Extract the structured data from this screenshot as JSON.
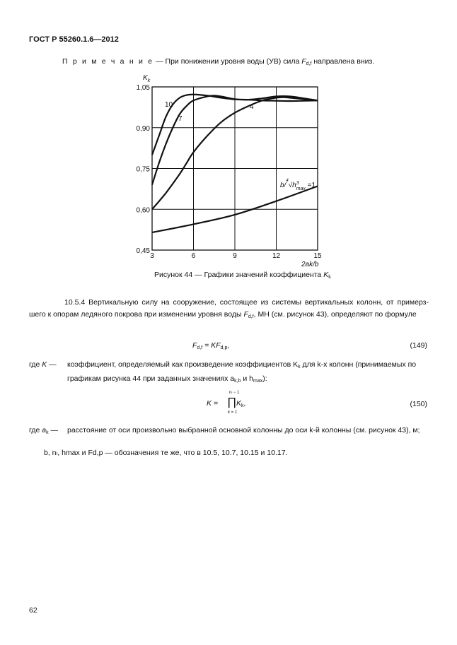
{
  "header": {
    "title": "ГОСТ Р 55260.1.6—2012"
  },
  "note": {
    "label": "П р и м е ч а н и е",
    "text_pre": " — При понижении уровня воды (УВ) сила ",
    "sym": "F",
    "sub": "d,f",
    "text_post": " направлена вниз."
  },
  "figure": {
    "caption": "Рисунок 44 — Графики значений коэффициента ",
    "caption_sym": "K",
    "caption_sub": "k"
  },
  "chart_data": {
    "type": "line",
    "ylabel": "Kk",
    "xlabel": "2ak/b",
    "xlim": [
      3,
      15
    ],
    "ylim": [
      0.45,
      1.05
    ],
    "xticks": [
      "3",
      "6",
      "9",
      "12",
      "15"
    ],
    "yticks": [
      "0,45",
      "0,60",
      "0,75",
      "0,90",
      "1,05"
    ],
    "grid": true,
    "series": [
      {
        "name": "10",
        "x": [
          3,
          3.5,
          4,
          4.5,
          5,
          5.5,
          6,
          7,
          8,
          9,
          10,
          11,
          12,
          13,
          14,
          15
        ],
        "y": [
          0.8,
          0.87,
          0.94,
          0.985,
          1.01,
          1.02,
          1.022,
          1.018,
          1.01,
          1.004,
          1.003,
          1.0,
          0.999,
          0.998,
          0.999,
          1.0
        ]
      },
      {
        "name": "7",
        "x": [
          3,
          3.5,
          4,
          4.5,
          5,
          5.5,
          6,
          7,
          7.5,
          8,
          9,
          10,
          11,
          12,
          13,
          14,
          15
        ],
        "y": [
          0.69,
          0.77,
          0.84,
          0.9,
          0.95,
          0.98,
          1.0,
          1.015,
          1.018,
          1.015,
          1.005,
          1.003,
          1.008,
          1.015,
          1.015,
          1.008,
          1.0
        ]
      },
      {
        "name": "4",
        "x": [
          3,
          4,
          5,
          5.5,
          6,
          7,
          8,
          9,
          10,
          11,
          12,
          12.5,
          13,
          14,
          15
        ],
        "y": [
          0.6,
          0.66,
          0.73,
          0.77,
          0.81,
          0.87,
          0.92,
          0.955,
          0.98,
          1.0,
          1.01,
          1.012,
          1.01,
          1.005,
          1.0
        ]
      },
      {
        "name": "b/∜h³max =1",
        "x": [
          3,
          6,
          9,
          12,
          15
        ],
        "y": [
          0.515,
          0.545,
          0.58,
          0.63,
          0.685
        ]
      }
    ]
  },
  "section": {
    "para": "10.5.4 Вертикальную силу на сооружение, состоящее из системы вертикальных колонн, от примерз-шего к опорам ледяного покрова при изменении уровня воды ",
    "para_sym": "F",
    "para_sub": "d,f",
    "para_post": ", МН (см. рисунок 43),  определяют по формуле",
    "eq149": {
      "lhs": "F",
      "lhs_sub": "d,f",
      "mid": " = K",
      "rhs": "F",
      "rhs_sub": "d,p",
      "tail": ",",
      "num": "(149)"
    },
    "where1": {
      "lead": "где ",
      "sym": "K",
      "dash": " —",
      "text": "коэффициент, определяемый как произведение коэффициентов K",
      "sub": "k",
      "text2": " для k-х колонн (принимаемых по графикам рисунка 44 при заданных значениях a",
      "sub2": "k,b",
      "text3": " и h",
      "sub3": "max",
      "text4": "):"
    },
    "eq150": {
      "lhs": "K =",
      "prod": "∏",
      "upper": "nₗ − 1",
      "lower": "k = 1",
      "term": "K",
      "term_sub": "k",
      "tail": ",",
      "num": "(150)"
    },
    "where2": {
      "lead": "где ",
      "sym": "a",
      "sub": "k",
      "dash": " —",
      "text": "расстояние от оси произвольно выбранной основной колонны до оси k-й колонны (см. рисунок 43), м;"
    },
    "where3": "b, nₗ, hmax и Fd,p — обозначения те же, что в 10.5, 10.7, 10.15 и 10.17."
  },
  "footer": {
    "page": "62"
  }
}
